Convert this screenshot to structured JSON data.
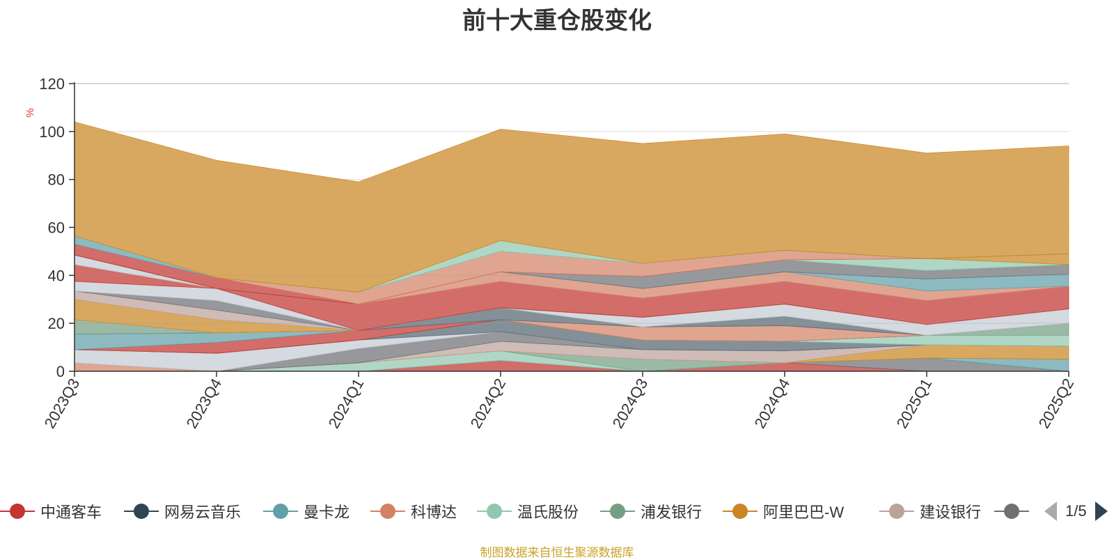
{
  "title": "前十大重仓股变化",
  "footer": "制图数据来自恒生聚源数据库",
  "footer_color": "#c9a227",
  "legend": {
    "items": [
      {
        "name": "中通客车",
        "color": "#c23531"
      },
      {
        "name": "网易云音乐",
        "color": "#2f4554"
      },
      {
        "name": "曼卡龙",
        "color": "#61a0a8"
      },
      {
        "name": "科博达",
        "color": "#d48265"
      },
      {
        "name": "温氏股份",
        "color": "#91c7ae"
      },
      {
        "name": "浦发银行",
        "color": "#749f83"
      },
      {
        "name": "阿里巴巴-W",
        "color": "#ca8622"
      },
      {
        "name": "建设银行",
        "color": "#bda29a"
      },
      {
        "name": "",
        "color": "#6e7074"
      }
    ],
    "page": "1/5"
  },
  "chart_data": {
    "type": "area",
    "stacked": true,
    "title": "前十大重仓股变化",
    "ylabel": "%",
    "ylim": [
      0,
      120
    ],
    "yticks": [
      0,
      20,
      40,
      60,
      80,
      100,
      120
    ],
    "grid": true,
    "categories": [
      "2023Q3",
      "2023Q4",
      "2024Q1",
      "2024Q2",
      "2024Q3",
      "2024Q4",
      "2025Q1",
      "2025Q2"
    ],
    "series": [
      {
        "color": "#c23531",
        "values": [
          0,
          0,
          0,
          4.5,
          0,
          3.5,
          0,
          0
        ]
      },
      {
        "color": "#6e7074",
        "values": [
          0,
          0,
          0,
          0,
          0,
          0,
          5.5,
          0
        ]
      },
      {
        "color": "#61a0a8",
        "values": [
          0,
          0,
          0,
          0,
          0,
          0,
          0,
          5.0
        ]
      },
      {
        "color": "#91c7ae",
        "values": [
          0,
          0,
          3.5,
          4.0,
          0,
          0,
          0,
          0
        ]
      },
      {
        "color": "#749f83",
        "values": [
          0,
          0,
          0,
          0,
          5.0,
          0,
          0,
          0
        ]
      },
      {
        "color": "#ca8622",
        "values": [
          0,
          0,
          0,
          0,
          0,
          0,
          5.5,
          5.5
        ]
      },
      {
        "color": "#d48265",
        "values": [
          3.5,
          0,
          0,
          0,
          0,
          0,
          0,
          0
        ]
      },
      {
        "color": "#bda29a",
        "values": [
          0,
          0,
          0,
          4.0,
          4.0,
          5.0,
          0,
          0
        ]
      },
      {
        "color": "#6e7074",
        "values": [
          0,
          0,
          6.0,
          4.0,
          0,
          0,
          0,
          0
        ]
      },
      {
        "color": "#c4ccd3",
        "values": [
          5.5,
          7.5,
          3.5,
          0,
          0,
          0,
          0,
          0
        ]
      },
      {
        "color": "#546570",
        "values": [
          0,
          0,
          0,
          5.0,
          4.0,
          4.0,
          0,
          0
        ]
      },
      {
        "color": "#91c7ae",
        "values": [
          0,
          0,
          0,
          0,
          0,
          0,
          4.0,
          4.5
        ]
      },
      {
        "color": "#749f83",
        "values": [
          0,
          0,
          0,
          0,
          0,
          0,
          0,
          5.0
        ]
      },
      {
        "color": "#c23531",
        "values": [
          0,
          4.5,
          4.0,
          0,
          0,
          0,
          0,
          0
        ]
      },
      {
        "color": "#61a0a8",
        "values": [
          6.5,
          4.0,
          0,
          0,
          0,
          0,
          0,
          0
        ]
      },
      {
        "color": "#d48265",
        "values": [
          0,
          0,
          0,
          0,
          5.5,
          6.5,
          0,
          0
        ]
      },
      {
        "color": "#546570",
        "values": [
          0,
          0,
          0,
          5.0,
          0,
          4.0,
          0,
          0
        ]
      },
      {
        "color": "#749f83",
        "values": [
          6.0,
          0,
          0,
          0,
          0,
          0,
          0,
          0
        ]
      },
      {
        "color": "#c4ccd3",
        "values": [
          0,
          0,
          0,
          0,
          4.0,
          5.0,
          4.5,
          6.0
        ]
      },
      {
        "color": "#ca8622",
        "values": [
          8.5,
          5.5,
          0,
          0,
          0,
          0,
          0,
          0
        ]
      },
      {
        "color": "#bda29a",
        "values": [
          3.5,
          4.0,
          0,
          0,
          0,
          0,
          0,
          0
        ]
      },
      {
        "color": "#6e7074",
        "values": [
          0,
          4.0,
          0,
          0,
          0,
          0,
          0,
          0
        ]
      },
      {
        "color": "#c4ccd3",
        "values": [
          4.0,
          5.0,
          0,
          0,
          0,
          0,
          0,
          0
        ]
      },
      {
        "color": "#c23531",
        "values": [
          7.0,
          0,
          11.0,
          11.0,
          8.0,
          9.5,
          10.0,
          9.5
        ]
      },
      {
        "color": "#c4ccd3",
        "values": [
          4.0,
          0,
          0,
          0,
          0,
          0,
          0,
          0
        ]
      },
      {
        "color": "#d48265",
        "values": [
          0,
          0,
          0,
          4.0,
          4.0,
          4.0,
          4.0,
          0
        ]
      },
      {
        "color": "#61a0a8",
        "values": [
          0,
          0,
          0,
          0,
          0,
          0,
          5.0,
          5.0
        ]
      },
      {
        "color": "#6e7074",
        "values": [
          0,
          0,
          0,
          0,
          5.0,
          5.0,
          3.5,
          4.0
        ]
      },
      {
        "color": "#91c7ae",
        "values": [
          0,
          0,
          0,
          0,
          0,
          0,
          5.0,
          0
        ]
      },
      {
        "color": "#ca8622",
        "values": [
          0,
          0,
          0,
          0,
          0,
          0,
          0,
          4.5
        ]
      },
      {
        "color": "#c23531",
        "values": [
          4.5,
          4.5,
          0,
          0,
          0,
          0,
          0,
          0
        ]
      },
      {
        "color": "#d48265",
        "values": [
          0,
          0,
          5.0,
          8.5,
          5.5,
          4.0,
          0,
          0
        ]
      },
      {
        "color": "#61a0a8",
        "values": [
          3.5,
          0,
          0,
          0,
          0,
          0,
          0,
          0
        ]
      },
      {
        "color": "#91c7ae",
        "values": [
          0,
          0,
          0,
          4.5,
          0,
          0,
          0,
          0
        ]
      },
      {
        "color": "#ca8622",
        "values": [
          47.5,
          49.0,
          46.0,
          46.5,
          50.0,
          48.5,
          44.0,
          45.0
        ]
      }
    ]
  }
}
